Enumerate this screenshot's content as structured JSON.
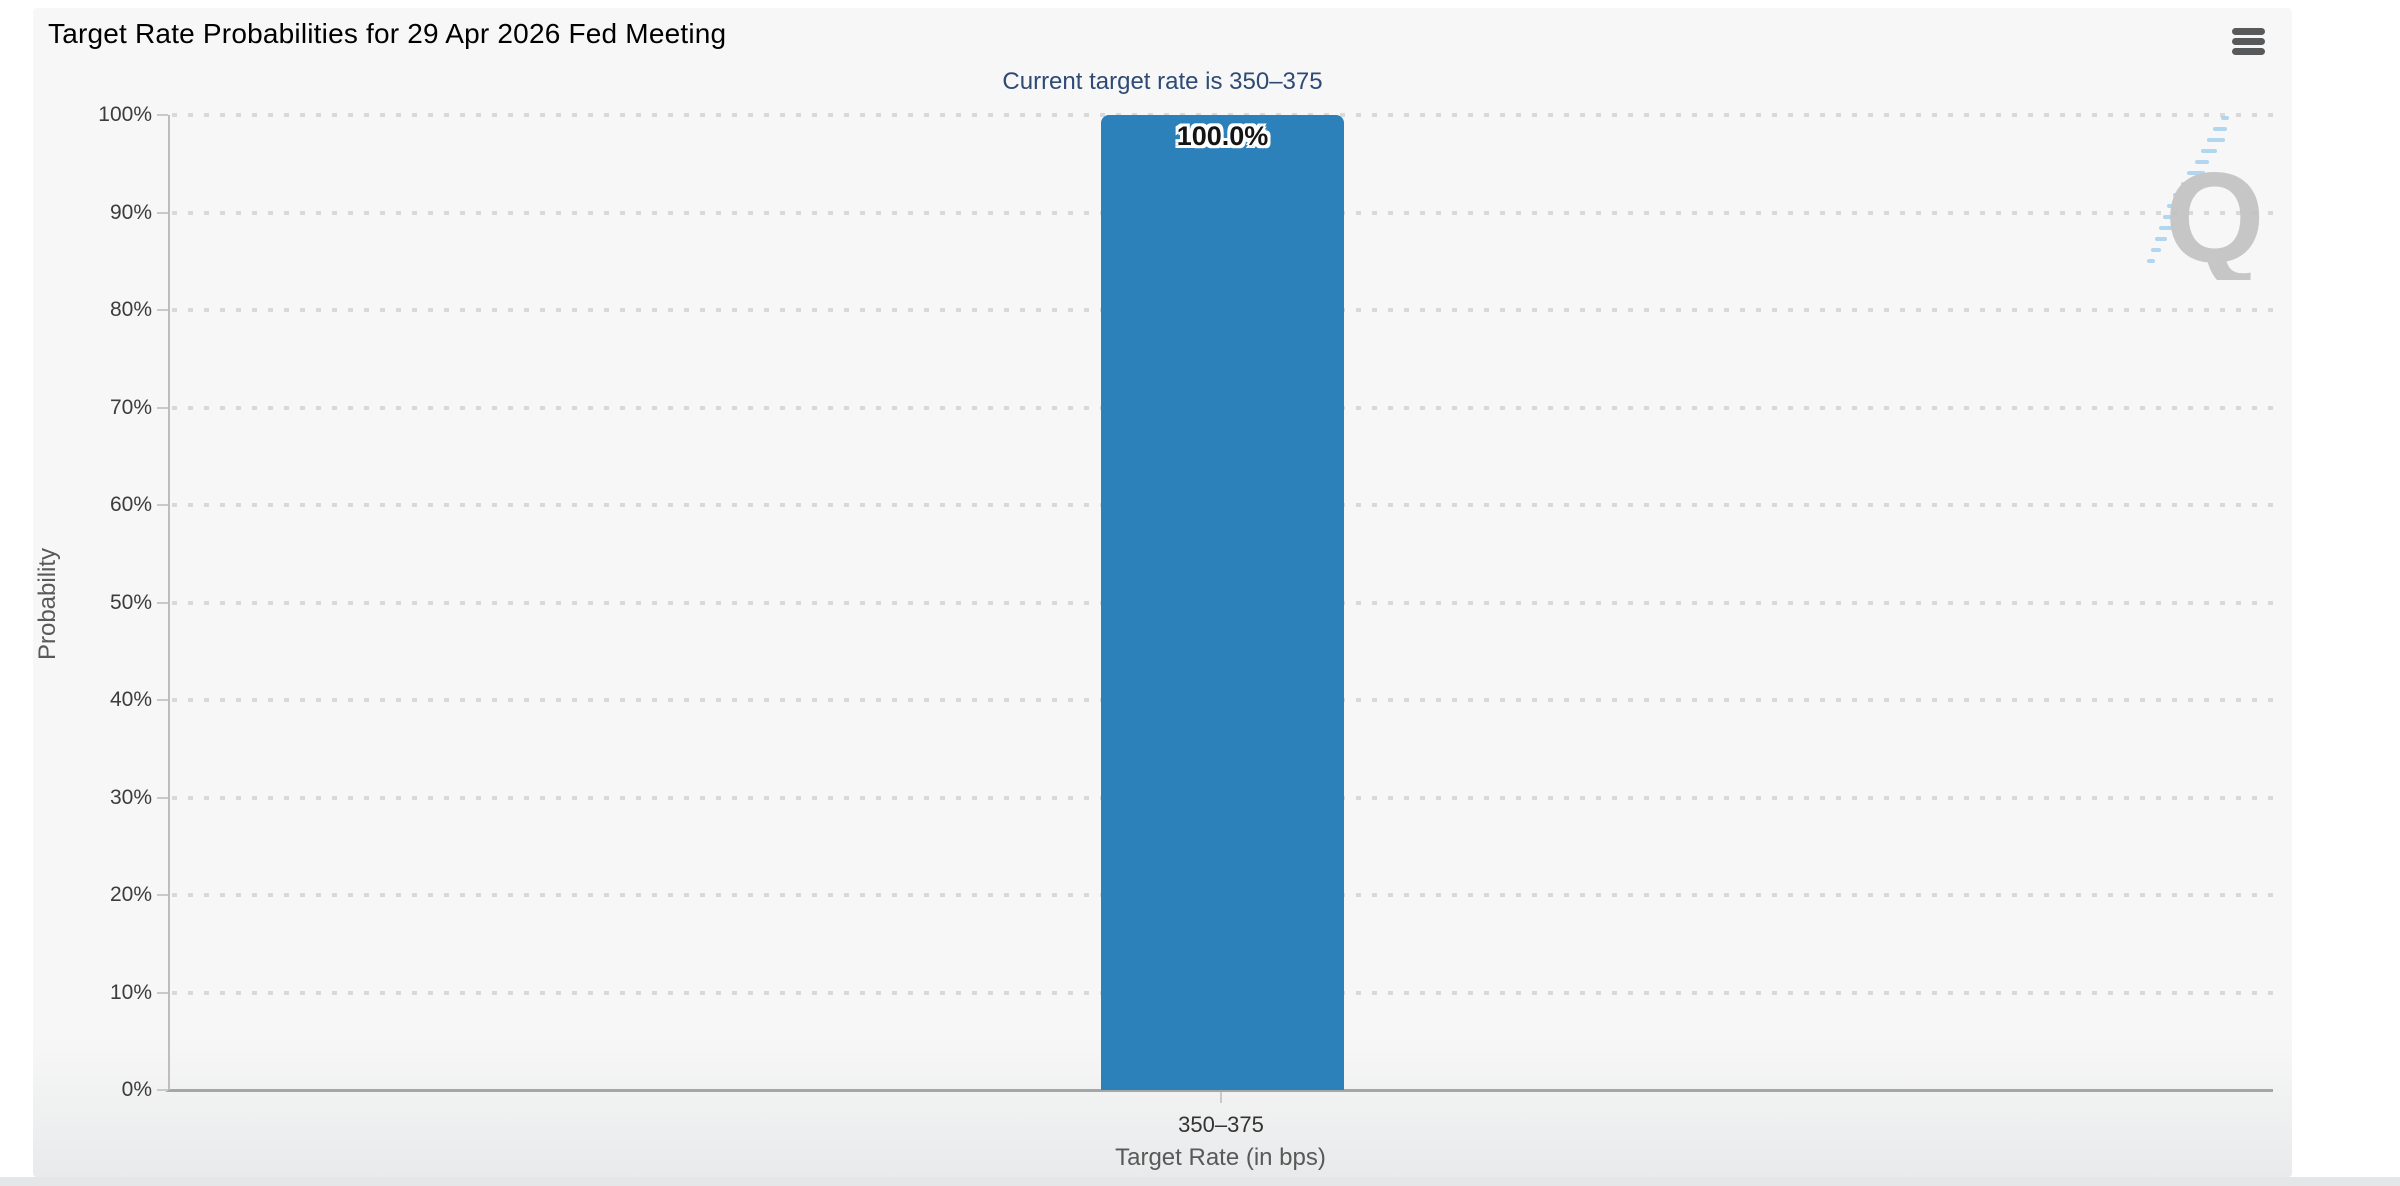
{
  "header": {
    "title": "Target Rate Probabilities for 29 Apr 2026 Fed Meeting"
  },
  "menu": {
    "name": "chart-context-menu"
  },
  "watermark": {
    "letter": "Q"
  },
  "chart_data": {
    "type": "bar",
    "title": "Target Rate Probabilities for 29 Apr 2026 Fed Meeting",
    "subtitle": "Current target rate is 350–375",
    "categories": [
      "350–375"
    ],
    "values": [
      100.0
    ],
    "bar_labels": [
      "100.0%"
    ],
    "xlabel": "Target Rate (in bps)",
    "ylabel": "Probability",
    "ylim": [
      0,
      100
    ],
    "ytick_step": 10,
    "ytick_labels": [
      "0%",
      "10%",
      "20%",
      "30%",
      "40%",
      "50%",
      "60%",
      "70%",
      "80%",
      "90%",
      "100%"
    ],
    "grid": "dotted horizontal gridlines",
    "legend": "none",
    "bar_color": "#2c81ba",
    "subtitle_color": "#2e4a75"
  }
}
